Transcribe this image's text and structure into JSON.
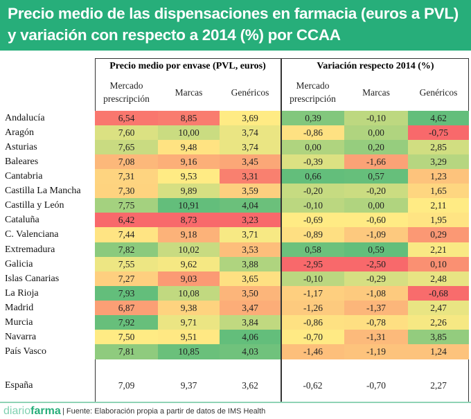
{
  "chart_data": {
    "type": "heatmap",
    "title": "Precio medio de las dispensaciones en farmacia (euros a PVL) y variación con respecto a 2014 (%) por CCAA",
    "groups": [
      "Precio medio por envase (PVL, euros)",
      "Variación respecto 2014 (%)"
    ],
    "columns": [
      "Mercado prescripción",
      "Marcas",
      "Genéricos",
      "Mercado prescripción",
      "Marcas",
      "Genéricos"
    ],
    "rows": [
      {
        "label": "Andalucía",
        "values": [
          "6,54",
          "8,85",
          "3,69",
          "0,39",
          "-0,10",
          "4,62"
        ]
      },
      {
        "label": "Aragón",
        "values": [
          "7,60",
          "10,00",
          "3,74",
          "-0,86",
          "0,00",
          "-0,75"
        ]
      },
      {
        "label": "Asturias",
        "values": [
          "7,65",
          "9,48",
          "3,74",
          "0,00",
          "0,20",
          "2,85"
        ]
      },
      {
        "label": "Baleares",
        "values": [
          "7,08",
          "9,16",
          "3,45",
          "-0,39",
          "-1,66",
          "3,29"
        ]
      },
      {
        "label": "Cantabria",
        "values": [
          "7,31",
          "9,53",
          "3,31",
          "0,66",
          "0,57",
          "1,23"
        ]
      },
      {
        "label": "Castilla La Mancha",
        "values": [
          "7,30",
          "9,89",
          "3,59",
          "-0,20",
          "-0,20",
          "1,65"
        ]
      },
      {
        "label": "Castilla y León",
        "values": [
          "7,75",
          "10,91",
          "4,04",
          "-0,10",
          "0,00",
          "2,11"
        ]
      },
      {
        "label": "Cataluña",
        "values": [
          "6,42",
          "8,73",
          "3,23",
          "-0,69",
          "-0,60",
          "1,95"
        ]
      },
      {
        "label": "C. Valenciana",
        "values": [
          "7,44",
          "9,18",
          "3,71",
          "-0,89",
          "-1,09",
          "0,29"
        ]
      },
      {
        "label": "Extremadura",
        "values": [
          "7,82",
          "10,02",
          "3,53",
          "0,58",
          "0,59",
          "2,21"
        ]
      },
      {
        "label": "Galicia",
        "values": [
          "7,55",
          "9,62",
          "3,88",
          "-2,95",
          "-2,50",
          "0,10"
        ]
      },
      {
        "label": "Islas Canarias",
        "values": [
          "7,27",
          "9,03",
          "3,65",
          "-0,10",
          "-0,29",
          "2,48"
        ]
      },
      {
        "label": "La Rioja",
        "values": [
          "7,93",
          "10,08",
          "3,50",
          "-1,17",
          "-1,08",
          "-0,68"
        ]
      },
      {
        "label": "Madrid",
        "values": [
          "6,87",
          "9,38",
          "3,47",
          "-1,26",
          "-1,37",
          "2,47"
        ]
      },
      {
        "label": "Murcia",
        "values": [
          "7,92",
          "9,71",
          "3,84",
          "-0,86",
          "-0,78",
          "2,26"
        ]
      },
      {
        "label": "Navarra",
        "values": [
          "7,50",
          "9,51",
          "4,06",
          "-0,70",
          "-1,31",
          "3,85"
        ]
      },
      {
        "label": "País Vasco",
        "values": [
          "7,81",
          "10,85",
          "4,03",
          "-1,46",
          "-1,19",
          "1,24"
        ]
      }
    ],
    "total": {
      "label": "España",
      "values": [
        "7,09",
        "9,37",
        "3,62",
        "-0,62",
        "-0,70",
        "2,27"
      ]
    },
    "color_scale": {
      "low": "#f8696b",
      "mid": "#ffeb84",
      "high": "#63be7b"
    }
  },
  "colors": {
    "banner": "#27ae7a"
  },
  "footer": {
    "logo": "diariofarma",
    "logo_light": "diario",
    "logo_bold": "farma",
    "source": "| Fuente: Elaboración propia a partir de datos de IMS Health"
  }
}
